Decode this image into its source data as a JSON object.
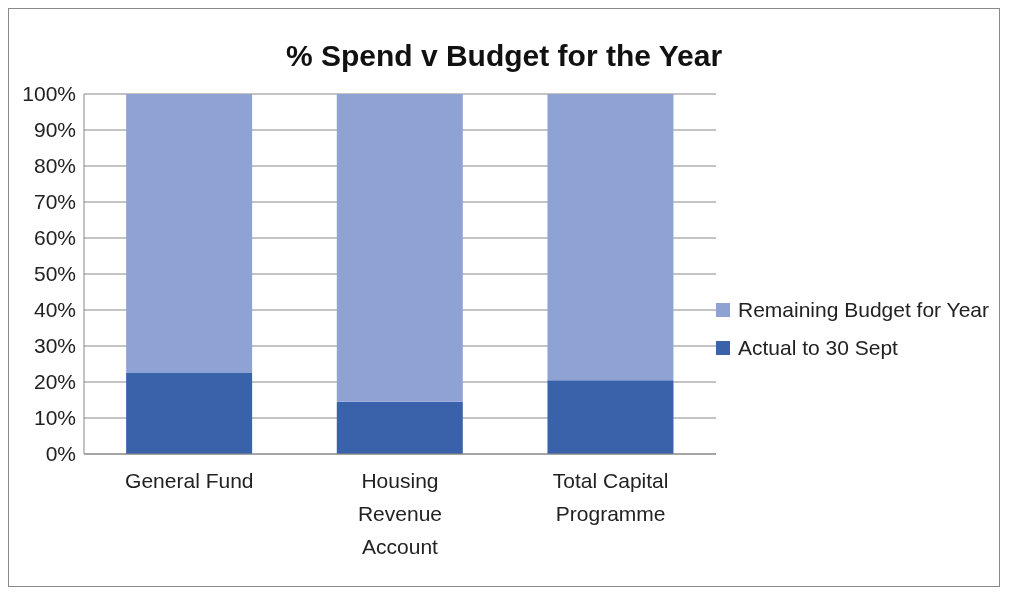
{
  "chart_data": {
    "type": "bar",
    "title": "% Spend v Budget for the Year",
    "categories": [
      "General Fund",
      "Housing Revenue Account",
      "Total Capital Programme"
    ],
    "series": [
      {
        "name": "Actual to 30 Sept",
        "color": "#3a62aa",
        "values": [
          22.5,
          14.5,
          20.5
        ]
      },
      {
        "name": "Remaining Budget for Year",
        "color": "#8ea3d4",
        "values": [
          77.5,
          85.5,
          79.5
        ]
      }
    ],
    "stacked": true,
    "ylim": [
      0,
      100
    ],
    "yticks": [
      {
        "value": 0,
        "label": "0%"
      },
      {
        "value": 10,
        "label": "10%"
      },
      {
        "value": 20,
        "label": "20%"
      },
      {
        "value": 30,
        "label": "30%"
      },
      {
        "value": 40,
        "label": "40%"
      },
      {
        "value": 50,
        "label": "50%"
      },
      {
        "value": 60,
        "label": "60%"
      },
      {
        "value": 70,
        "label": "70%"
      },
      {
        "value": 80,
        "label": "80%"
      },
      {
        "value": 90,
        "label": "90%"
      },
      {
        "value": 100,
        "label": "100%"
      }
    ],
    "grid": "y",
    "legend": "right"
  }
}
